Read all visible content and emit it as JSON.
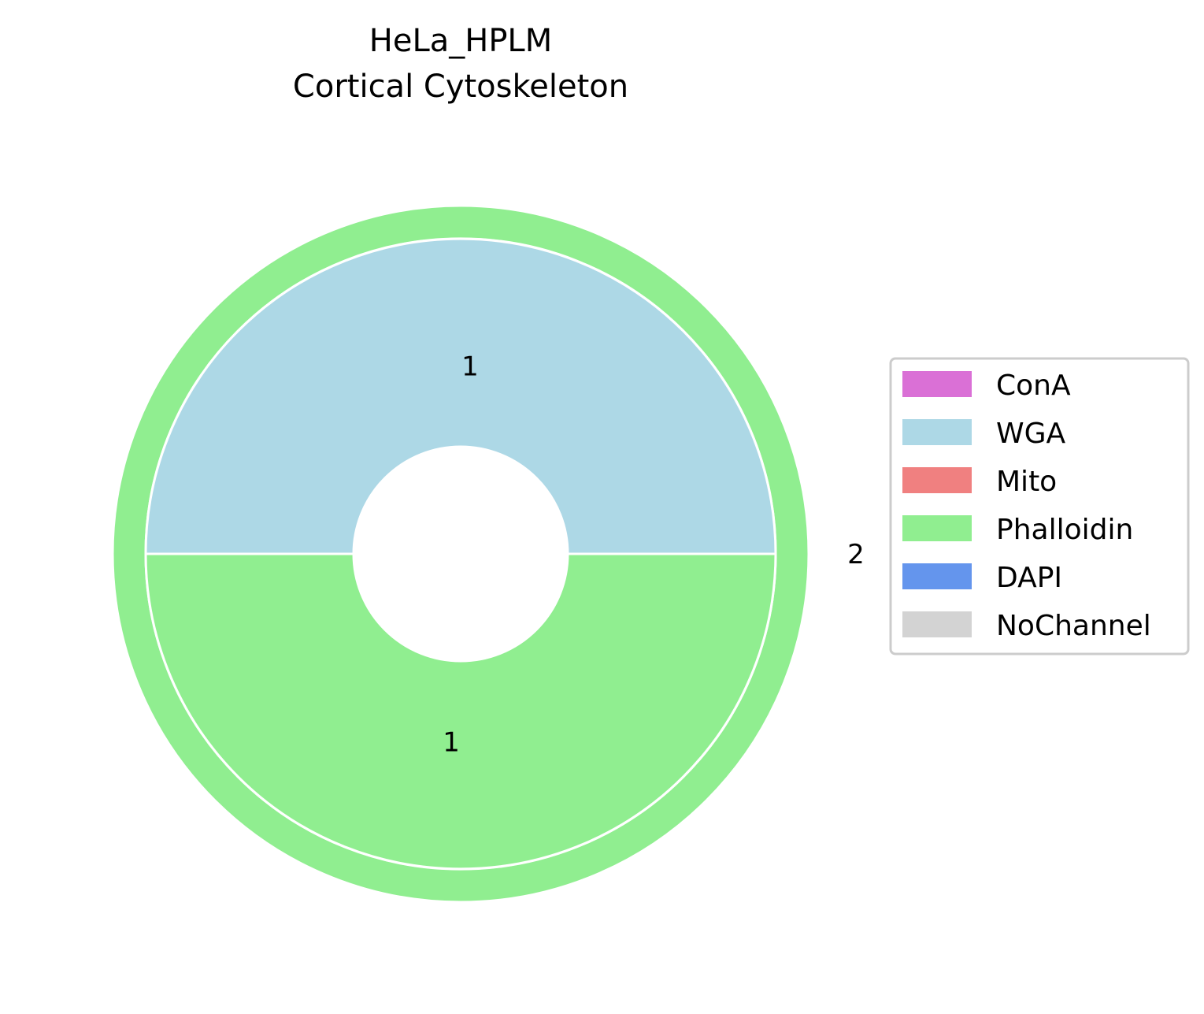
{
  "chart_data": {
    "type": "pie",
    "title_lines": [
      "HeLa_HPLM",
      "Cortical Cytoskeleton"
    ],
    "outer_ring": {
      "slices": [
        {
          "label": "2",
          "value": 2,
          "channel": "Phalloidin",
          "color": "#90ee90"
        }
      ]
    },
    "inner_ring": {
      "slices": [
        {
          "label": "1",
          "value": 1,
          "channel": "WGA",
          "color": "#add8e6"
        },
        {
          "label": "1",
          "value": 1,
          "channel": "Phalloidin",
          "color": "#90ee90"
        }
      ]
    },
    "legend": {
      "placement": "right",
      "entries": [
        {
          "label": "ConA",
          "color": "#da70d6"
        },
        {
          "label": "WGA",
          "color": "#add8e6"
        },
        {
          "label": "Mito",
          "color": "#f08080"
        },
        {
          "label": "Phalloidin",
          "color": "#90ee90"
        },
        {
          "label": "DAPI",
          "color": "#6495ed"
        },
        {
          "label": "NoChannel",
          "color": "#d3d3d3"
        }
      ]
    }
  }
}
